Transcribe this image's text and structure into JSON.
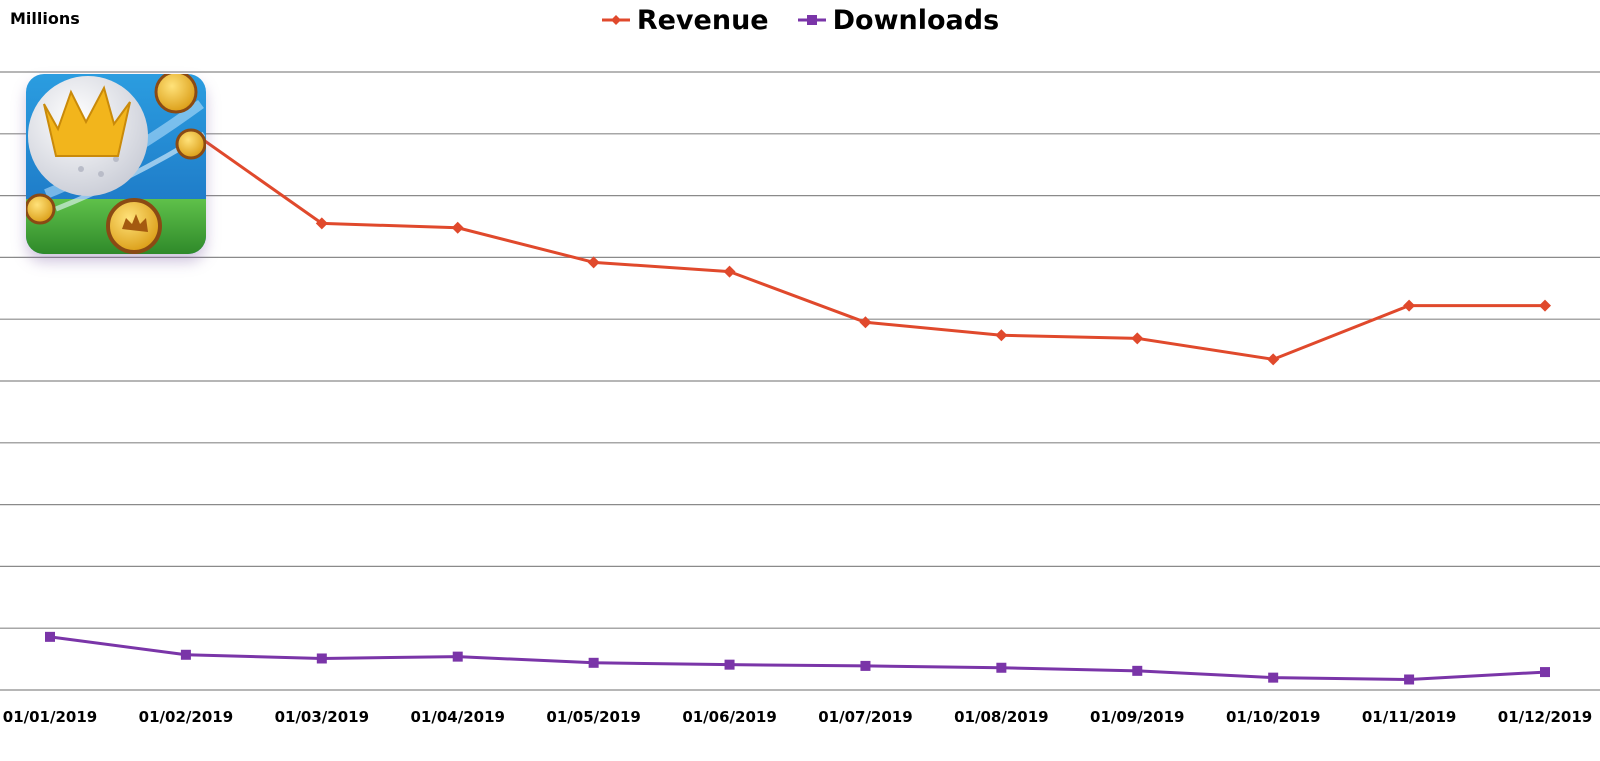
{
  "chart_data": {
    "type": "line",
    "ylabel": "Millions",
    "x": [
      "01/01/2019",
      "01/02/2019",
      "01/03/2019",
      "01/04/2019",
      "01/05/2019",
      "01/06/2019",
      "01/07/2019",
      "01/08/2019",
      "01/09/2019",
      "01/10/2019",
      "01/11/2019",
      "01/12/2019"
    ],
    "ylim": [
      0,
      10
    ],
    "grid": true,
    "legend_position": "top-center",
    "series": [
      {
        "name": "Revenue",
        "color": "#e0492c",
        "marker": "diamond",
        "values": [
          8.0,
          9.1,
          7.55,
          7.48,
          6.92,
          6.77,
          5.95,
          5.74,
          5.69,
          5.35,
          6.22,
          6.22
        ]
      },
      {
        "name": "Downloads",
        "color": "#7a35a8",
        "marker": "square",
        "values": [
          0.86,
          0.57,
          0.51,
          0.54,
          0.44,
          0.41,
          0.39,
          0.36,
          0.31,
          0.2,
          0.17,
          0.29
        ]
      }
    ]
  },
  "app_icon": {
    "icon": "golf-clash-app-icon"
  }
}
